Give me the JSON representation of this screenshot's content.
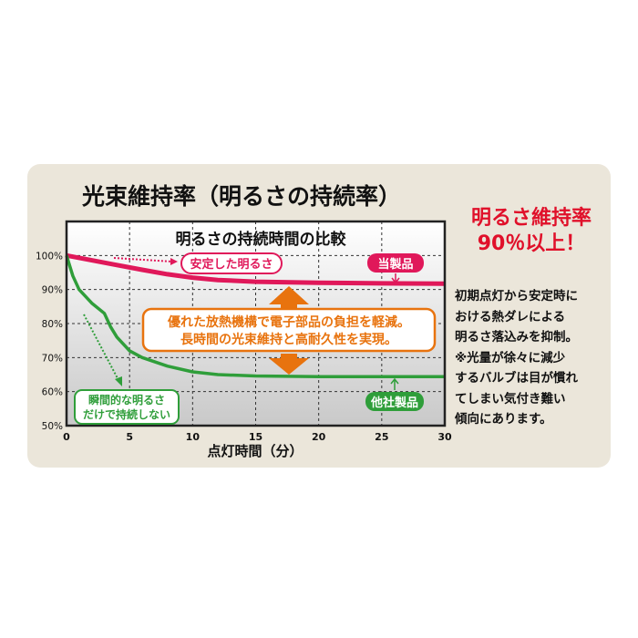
{
  "title": "光束維持率（明るさの持続率）",
  "headline": [
    "明るさ維持率",
    "90％以上！"
  ],
  "description": [
    "初期点灯から安定時に",
    "おける熱ダレによる",
    "明るさ落込みを抑制。",
    "※光量が徐々に減少",
    "するバルブは目が慣れ",
    "てしまい気付き難い",
    "傾向にあります。"
  ],
  "chart_data": {
    "type": "line",
    "title": "明るさの持続時間の比較",
    "xlabel": "点灯時間（分）",
    "ylabel": "",
    "xlim": [
      0,
      30
    ],
    "ylim": [
      50,
      110
    ],
    "xticks": [
      "0",
      "5",
      "10",
      "15",
      "20",
      "25",
      "30"
    ],
    "yticks": [
      "100%",
      "90%",
      "80%",
      "70%",
      "60%",
      "50%"
    ],
    "grid": true,
    "series": [
      {
        "name": "当製品",
        "color": "#e0185a",
        "x": [
          0,
          2,
          4,
          6,
          8,
          10,
          12,
          15,
          20,
          25,
          30
        ],
        "y": [
          100,
          98.6,
          97.2,
          95.8,
          94.5,
          93.5,
          92.8,
          92.3,
          92,
          91.8,
          91.7
        ]
      },
      {
        "name": "他社製品",
        "color": "#2f9e3a",
        "x": [
          0,
          0.5,
          1,
          2,
          3,
          3.5,
          4,
          5,
          6,
          8,
          10,
          12,
          15,
          20,
          25,
          30
        ],
        "y": [
          100,
          94,
          90,
          86,
          83,
          79,
          76,
          72,
          70,
          67.5,
          65.8,
          65,
          64.6,
          64.4,
          64.4,
          64.4
        ]
      }
    ],
    "annotations": {
      "stable": "安定した明るさ",
      "momentary": [
        "瞬間的な明るさ",
        "だけで持続しない"
      ],
      "center": [
        "優れた放熱機構で電子部品の負担を軽減。",
        "長時間の光束維持と高耐久性を実現。"
      ]
    },
    "colors": {
      "orange": "#e8730e",
      "red": "#e0185a",
      "green": "#2f9e3a"
    }
  }
}
